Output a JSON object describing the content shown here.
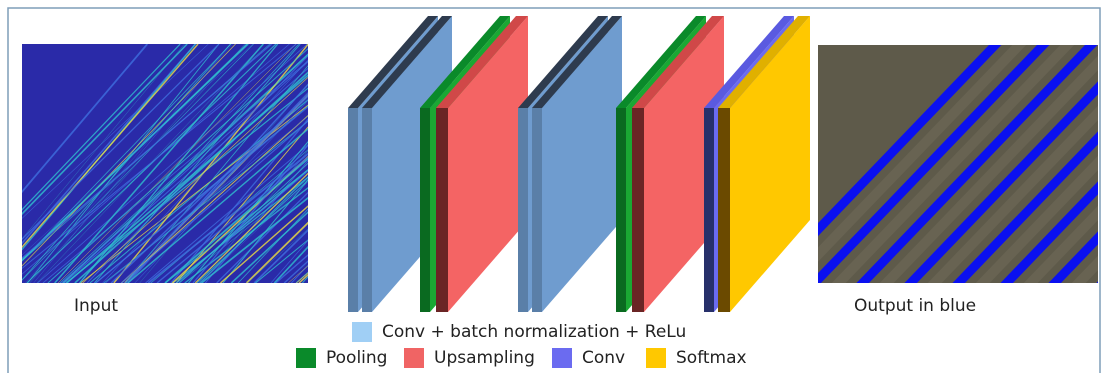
{
  "input_label": "Input",
  "output_label": "Output in blue",
  "legend": [
    {
      "label": "Conv + batch normalization + ReLu",
      "color": "#a0cff5"
    },
    {
      "label": "Pooling",
      "color": "#0a8a2a"
    },
    {
      "label": "Upsampling",
      "color": "#f06464"
    },
    {
      "label": "Conv",
      "color": "#6b6bf0"
    },
    {
      "label": "Softmax",
      "color": "#ffc800"
    }
  ]
}
